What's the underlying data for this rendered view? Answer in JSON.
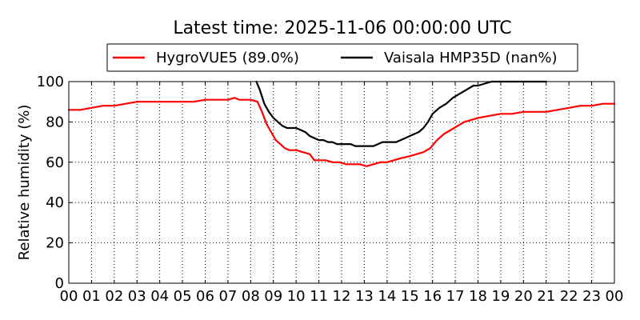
{
  "chart_data": {
    "type": "line",
    "title": "Latest time: 2025-11-06 00:00:00 UTC",
    "xlabel": "",
    "ylabel": "Relative humidity (%)",
    "ylim": [
      0,
      100
    ],
    "xlim": [
      0,
      24
    ],
    "x_tick_labels": [
      "00",
      "01",
      "02",
      "03",
      "04",
      "05",
      "06",
      "07",
      "08",
      "09",
      "10",
      "11",
      "12",
      "13",
      "14",
      "15",
      "16",
      "17",
      "18",
      "19",
      "20",
      "21",
      "22",
      "23",
      "00"
    ],
    "y_tick_labels": [
      "0",
      "20",
      "40",
      "60",
      "80",
      "100"
    ],
    "y_ticks": [
      0,
      20,
      40,
      60,
      80,
      100
    ],
    "grid": true,
    "legend_position": "top-center",
    "series": [
      {
        "name": "HygroVUE5 (89.0%)",
        "color": "#ff0000",
        "x": [
          0,
          0.5,
          1,
          1.5,
          2,
          2.5,
          3,
          3.5,
          4,
          4.5,
          5,
          5.5,
          6,
          6.5,
          7,
          7.3,
          7.5,
          8,
          8.3,
          8.5,
          8.7,
          8.9,
          9.1,
          9.3,
          9.5,
          9.7,
          10,
          10.3,
          10.6,
          10.8,
          11,
          11.3,
          11.6,
          11.9,
          12.2,
          12.5,
          12.8,
          13.1,
          13.4,
          13.7,
          14,
          14.3,
          14.6,
          15,
          15.3,
          15.6,
          15.9,
          16.2,
          16.5,
          16.8,
          17.1,
          17.4,
          17.7,
          18,
          18.5,
          19,
          19.5,
          20,
          20.5,
          21,
          21.5,
          22,
          22.5,
          23,
          23.5,
          24
        ],
        "y": [
          86,
          86,
          87,
          88,
          88,
          89,
          90,
          90,
          90,
          90,
          90,
          90,
          91,
          91,
          91,
          92,
          91,
          91,
          90,
          85,
          79,
          75,
          71,
          69,
          67,
          66,
          66,
          65,
          64,
          61,
          61,
          61,
          60,
          60,
          59,
          59,
          59,
          58,
          59,
          60,
          60,
          61,
          62,
          63,
          64,
          65,
          67,
          71,
          74,
          76,
          78,
          80,
          81,
          82,
          83,
          84,
          84,
          85,
          85,
          85,
          86,
          87,
          88,
          88,
          89,
          89
        ]
      },
      {
        "name": "Vaisala HMP35D (nan%)",
        "color": "#000000",
        "x": [
          8.25,
          8.4,
          8.6,
          8.8,
          9,
          9.2,
          9.4,
          9.6,
          9.8,
          10,
          10.2,
          10.4,
          10.6,
          10.8,
          11,
          11.2,
          11.4,
          11.6,
          11.8,
          12,
          12.2,
          12.4,
          12.6,
          12.8,
          13,
          13.2,
          13.4,
          13.6,
          13.8,
          14,
          14.2,
          14.4,
          14.6,
          14.8,
          15,
          15.2,
          15.4,
          15.6,
          15.8,
          16,
          16.3,
          16.6,
          16.9,
          17.2,
          17.5,
          17.8,
          18,
          18.3,
          18.6,
          19,
          19.3,
          19.6,
          20,
          20.3,
          20.6,
          21
        ],
        "y": [
          100,
          96,
          89,
          85,
          82,
          80,
          78,
          77,
          77,
          77,
          76,
          75,
          73,
          72,
          71,
          71,
          70,
          70,
          69,
          69,
          69,
          69,
          68,
          68,
          68,
          68,
          68,
          69,
          70,
          70,
          70,
          70,
          71,
          72,
          73,
          74,
          75,
          77,
          80,
          84,
          87,
          89,
          92,
          94,
          96,
          98,
          98,
          99,
          100,
          100,
          100,
          100,
          100,
          100,
          100,
          100
        ]
      }
    ]
  }
}
